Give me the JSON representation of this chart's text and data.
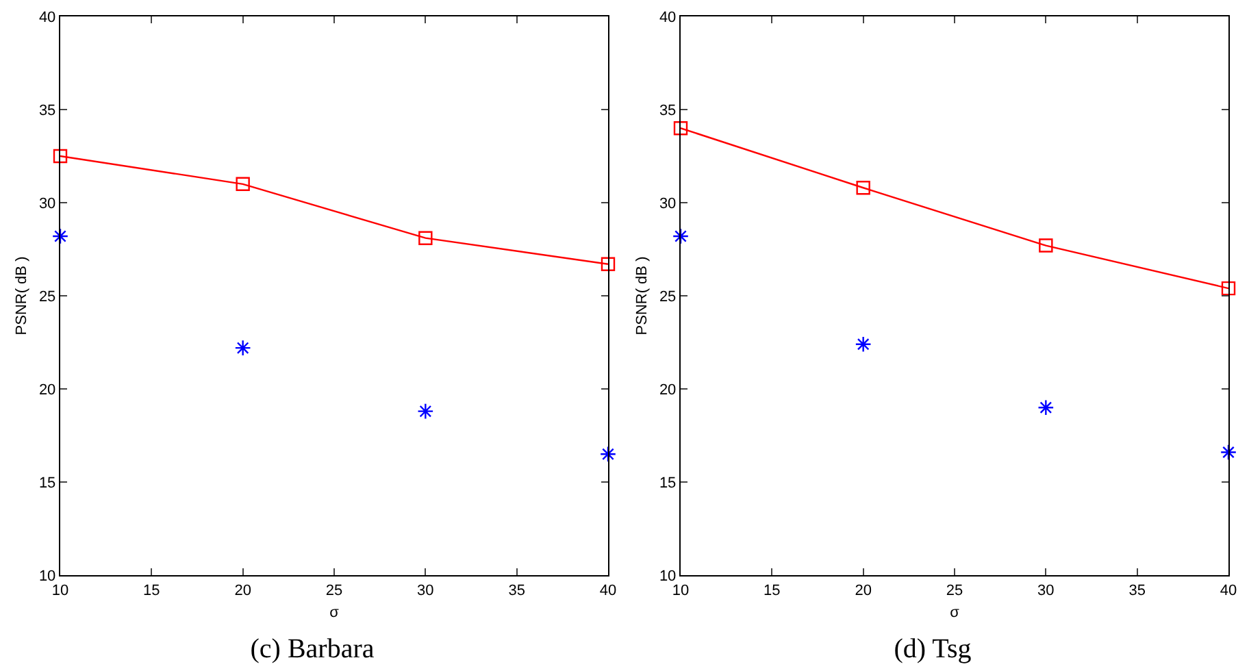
{
  "chart_data": [
    {
      "type": "line",
      "title": "(c) Barbara",
      "xlabel": "σ",
      "ylabel": "PSNR( dB )",
      "x": [
        10,
        20,
        30,
        40
      ],
      "series": [
        {
          "color": "#ff0000",
          "marker": "square",
          "values": [
            32.5,
            31.0,
            28.1,
            26.7
          ]
        },
        {
          "type": "scatter",
          "color": "#0000ff",
          "marker": "cross",
          "values": [
            28.2,
            22.2,
            18.8,
            16.5
          ]
        }
      ],
      "xlim": [
        10,
        40
      ],
      "xticks": [
        10,
        15,
        20,
        25,
        30,
        35,
        40
      ],
      "ylim": [
        10,
        40
      ],
      "yticks": [
        10,
        15,
        20,
        25,
        30,
        35,
        40
      ],
      "grid": false
    },
    {
      "type": "line",
      "title": "(d) Tsg",
      "xlabel": "σ",
      "ylabel": "PSNR( dB )",
      "x": [
        10,
        20,
        30,
        40
      ],
      "series": [
        {
          "color": "#ff0000",
          "marker": "square",
          "values": [
            34.0,
            30.8,
            27.7,
            25.4
          ]
        },
        {
          "type": "scatter",
          "color": "#0000ff",
          "marker": "cross",
          "values": [
            28.2,
            22.4,
            19.0,
            16.6
          ]
        }
      ],
      "xlim": [
        10,
        40
      ],
      "xticks": [
        10,
        15,
        20,
        25,
        30,
        35,
        40
      ],
      "ylim": [
        10,
        40
      ],
      "yticks": [
        10,
        15,
        20,
        25,
        30,
        35,
        40
      ],
      "grid": false
    }
  ]
}
